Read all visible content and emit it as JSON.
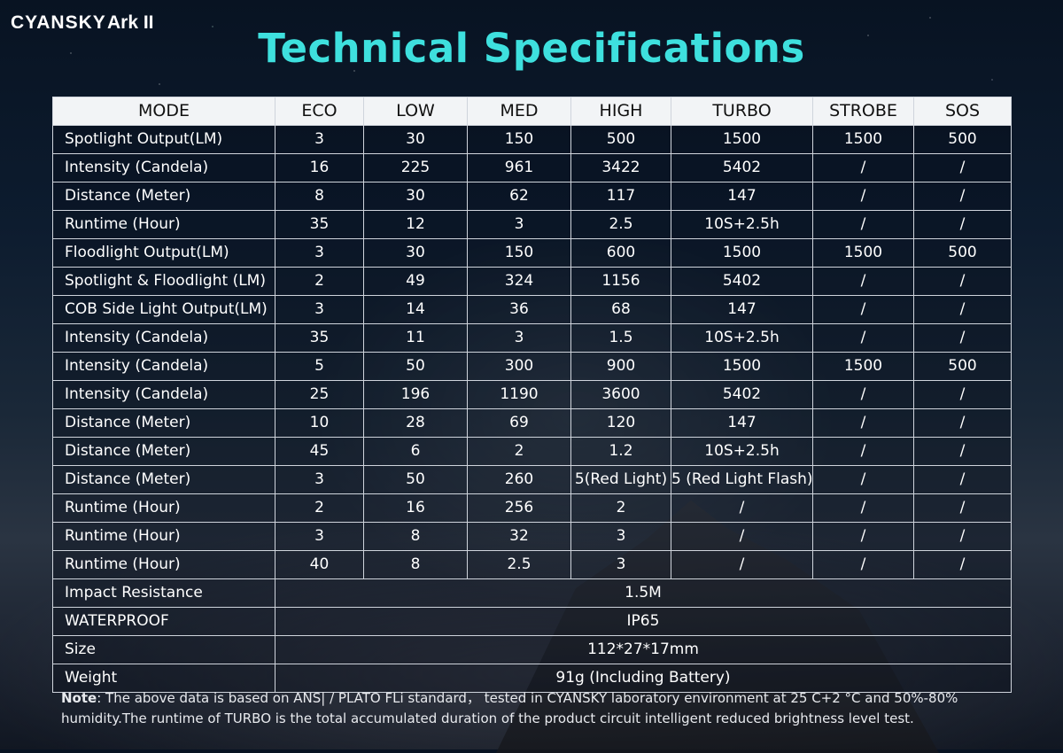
{
  "header": {
    "brand": "CYANSKY",
    "model": "Ark II",
    "title": "Technical Specifications"
  },
  "table": {
    "columns": [
      "MODE",
      "ECO",
      "LOW",
      "MED",
      "HIGH",
      "TURBO",
      "STROBE",
      "SOS"
    ],
    "rows": [
      {
        "label": "Spotlight Output(LM)",
        "values": [
          "3",
          "30",
          "150",
          "500",
          "1500",
          "1500",
          "500"
        ]
      },
      {
        "label": "Intensity (Candela)",
        "values": [
          "16",
          "225",
          "961",
          "3422",
          "5402",
          "/",
          "/"
        ]
      },
      {
        "label": "Distance (Meter)",
        "values": [
          "8",
          "30",
          "62",
          "117",
          "147",
          "/",
          "/"
        ]
      },
      {
        "label": "Runtime (Hour)",
        "values": [
          "35",
          "12",
          "3",
          "2.5",
          "10S+2.5h",
          "/",
          "/"
        ]
      },
      {
        "label": "Floodlight Output(LM)",
        "values": [
          "3",
          "30",
          "150",
          "600",
          "1500",
          "1500",
          "500"
        ]
      },
      {
        "label": "Spotlight & Floodlight (LM)",
        "values": [
          "2",
          "49",
          "324",
          "1156",
          "5402",
          "/",
          "/"
        ]
      },
      {
        "label": "COB Side Light Output(LM)",
        "values": [
          "3",
          "14",
          "36",
          "68",
          "147",
          "/",
          "/"
        ]
      },
      {
        "label": "Intensity (Candela)",
        "values": [
          "35",
          "11",
          "3",
          "1.5",
          "10S+2.5h",
          "/",
          "/"
        ]
      },
      {
        "label": "Intensity (Candela)",
        "values": [
          "5",
          "50",
          "300",
          "900",
          "1500",
          "1500",
          "500"
        ]
      },
      {
        "label": "Intensity (Candela)",
        "values": [
          "25",
          "196",
          "1190",
          "3600",
          "5402",
          "/",
          "/"
        ]
      },
      {
        "label": "Distance (Meter)",
        "values": [
          "10",
          "28",
          "69",
          "120",
          "147",
          "/",
          "/"
        ]
      },
      {
        "label": "Distance (Meter)",
        "values": [
          "45",
          "6",
          "2",
          "1.2",
          "10S+2.5h",
          "/",
          "/"
        ]
      },
      {
        "label": "Distance (Meter)",
        "values": [
          "3",
          "50",
          "260",
          "5(Red Light)",
          "5 (Red Light Flash)",
          "/",
          "/"
        ]
      },
      {
        "label": "Runtime (Hour)",
        "values": [
          "2",
          "16",
          "256",
          "2",
          "/",
          "/",
          "/"
        ]
      },
      {
        "label": "Runtime (Hour)",
        "values": [
          "3",
          "8",
          "32",
          "3",
          "/",
          "/",
          "/"
        ]
      },
      {
        "label": "Runtime (Hour)",
        "values": [
          "40",
          "8",
          "2.5",
          "3",
          "/",
          "/",
          "/"
        ]
      }
    ],
    "merged_rows": [
      {
        "label": "Impact Resistance",
        "value": "1.5M"
      },
      {
        "label": "WATERPROOF",
        "value": "IP65"
      },
      {
        "label": "Size",
        "value": "112*27*17mm"
      },
      {
        "label": "Weight",
        "value": "91g (Including Battery)"
      }
    ]
  },
  "note": {
    "label": "Note",
    "text": ": The above data is based on ANS| / PLATO FLi standard， tested in CYANSKY laboratory environment at 25 C+2 °C and 50%-80% humidity.The runtime of TURBO is the total accumulated duration of the product circuit intelligent reduced brightness level test."
  }
}
